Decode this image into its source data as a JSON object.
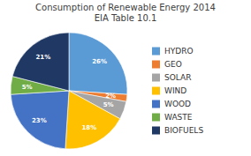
{
  "chart_data": {
    "type": "pie",
    "title": "Consumption of Renewable Energy 2014\nEIA Table 10.1",
    "categories": [
      "HYDRO",
      "GEO",
      "SOLAR",
      "WIND",
      "WOOD",
      "WASTE",
      "BIOFUELS"
    ],
    "values": [
      26,
      2,
      5,
      18,
      23,
      5,
      21
    ],
    "value_labels": [
      "26%",
      "2%",
      "5%",
      "18%",
      "23%",
      "5%",
      "21%"
    ],
    "colors": [
      "#5B9BD5",
      "#ED7D31",
      "#A5A5A5",
      "#FFC000",
      "#4472C4",
      "#70AD47",
      "#1F3864"
    ],
    "data_labels": true,
    "legend": "right"
  }
}
